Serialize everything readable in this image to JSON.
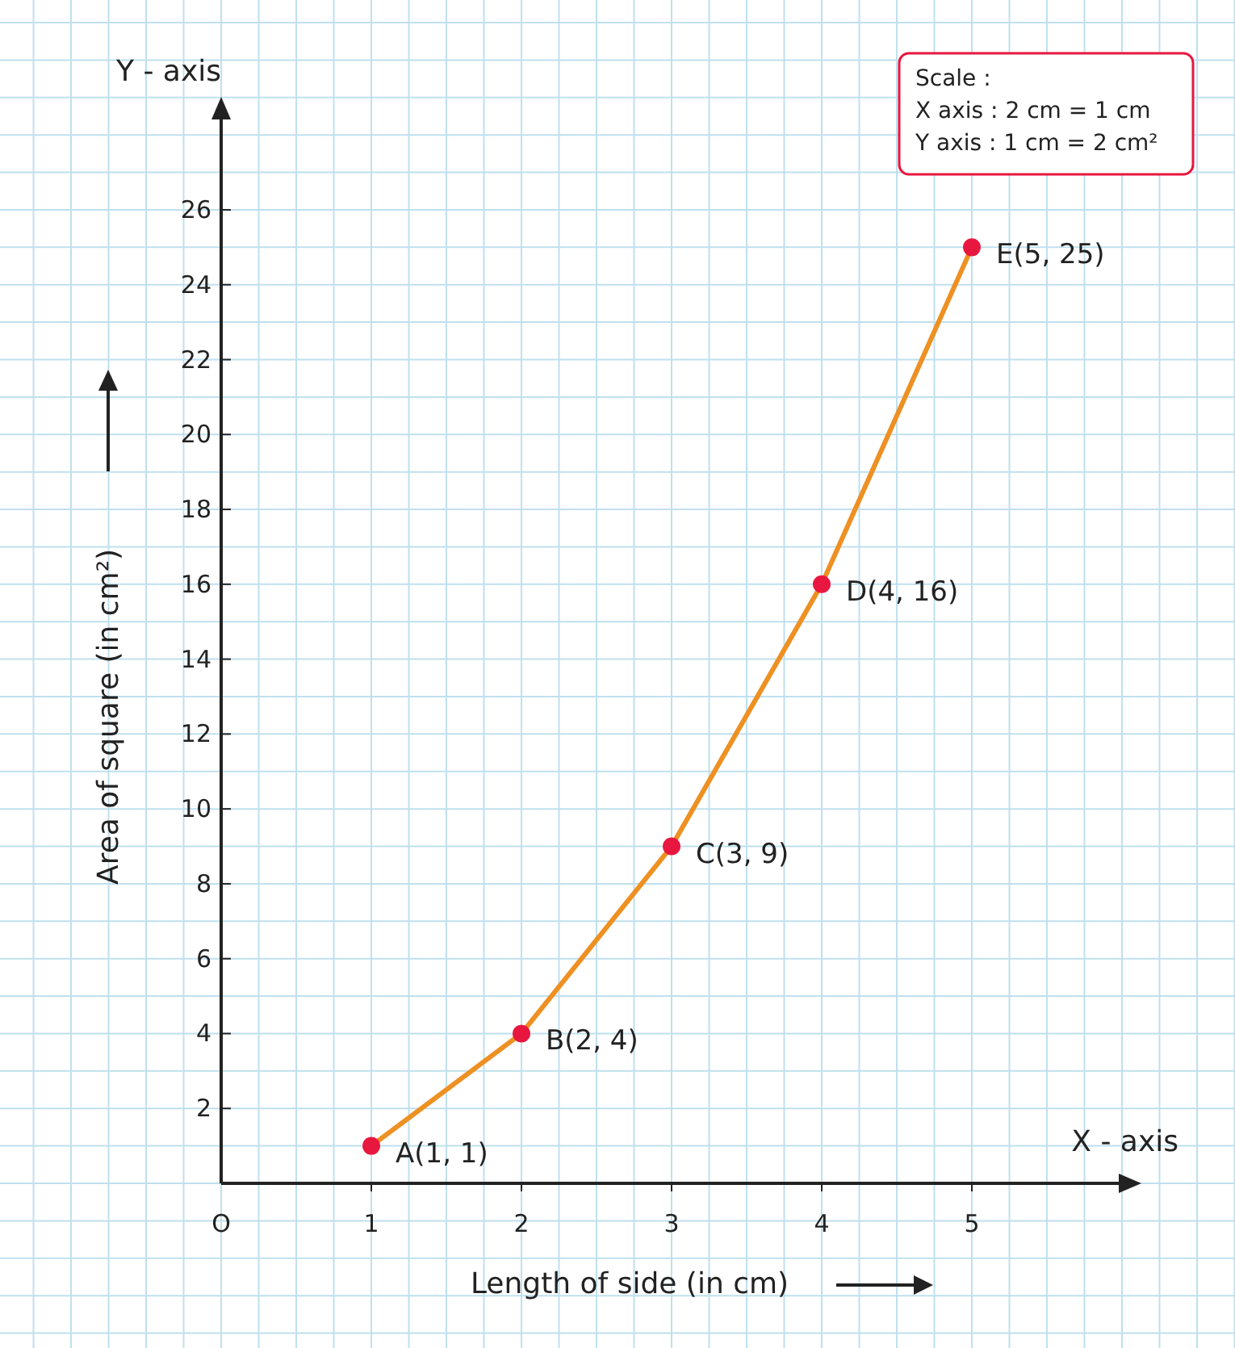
{
  "chart_data": {
    "type": "line",
    "xlabel": "Length of side (in cm)",
    "ylabel": "Area of square (in cm²)",
    "x": [
      1,
      2,
      3,
      4,
      5
    ],
    "series": [
      {
        "color": "#ee9022",
        "colors": [
          "#e8173f",
          "#e8173f",
          "#e8173f",
          "#e8173f",
          "#e8173f"
        ],
        "values": [
          1,
          4,
          9,
          16,
          25
        ]
      }
    ],
    "xlim": [
      0,
      6
    ],
    "ylim": [
      0,
      28.5
    ],
    "xticks": [
      {
        "value": 0,
        "label": "O"
      },
      1,
      2,
      3,
      4,
      5
    ],
    "yticks": [
      2,
      4,
      6,
      8,
      10,
      12,
      14,
      16,
      18,
      20,
      22,
      24,
      26
    ],
    "grid": true,
    "marker": "circle",
    "line_style": "solid",
    "annotations": [
      {
        "text": "A(1, 1)",
        "x": 1,
        "y": 1
      },
      {
        "text": "B(2, 4)",
        "x": 2,
        "y": 4
      },
      {
        "text": "C(3, 9)",
        "x": 3,
        "y": 9
      },
      {
        "text": "D(4, 16)",
        "x": 4,
        "y": 16
      },
      {
        "text": "E(5, 25)",
        "x": 5,
        "y": 25
      },
      "X - axis",
      "Y - axis",
      "Scale :",
      "X axis : 2 cm = 1 cm",
      "Y axis : 1 cm = 2 cm²"
    ]
  }
}
